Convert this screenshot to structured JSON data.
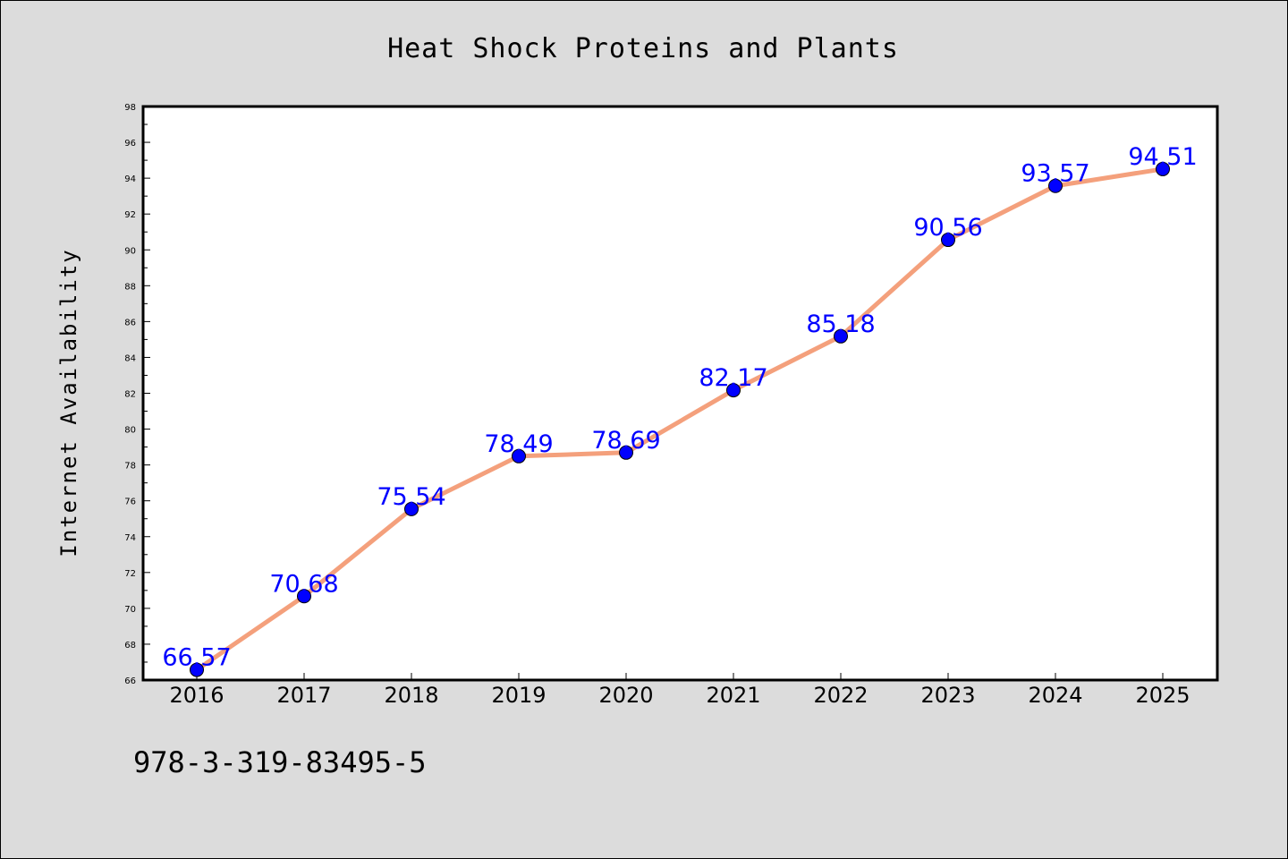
{
  "chart_data": {
    "type": "line",
    "title": "Heat Shock Proteins and Plants",
    "xlabel": "",
    "ylabel": "Internet Availability",
    "categories": [
      "2016",
      "2017",
      "2018",
      "2019",
      "2020",
      "2021",
      "2022",
      "2023",
      "2024",
      "2025"
    ],
    "series": [
      {
        "values": [
          66.57,
          70.68,
          75.54,
          78.49,
          78.69,
          82.17,
          85.18,
          90.56,
          93.57,
          94.51
        ],
        "data_labels": [
          "66.57",
          "70.68",
          "75.54",
          "78.49",
          "78.69",
          "82.17",
          "85.18",
          "90.56",
          "93.57",
          "94.51"
        ],
        "line_color": "#f4a07c",
        "marker_color": "#0000ff"
      }
    ],
    "ylim": [
      66,
      98
    ],
    "yticks": [
      "66",
      "68",
      "70",
      "72",
      "74",
      "76",
      "78",
      "80",
      "82",
      "84",
      "86",
      "88",
      "90",
      "92",
      "94",
      "96",
      "98"
    ],
    "grid": false,
    "legend": false
  },
  "footer": {
    "code": "978-3-319-83495-5"
  },
  "colors": {
    "background": "#dcdcdc",
    "plot_background": "#ffffff",
    "line": "#f4a07c",
    "marker": "#0000ff",
    "data_label": "#0000ff"
  }
}
